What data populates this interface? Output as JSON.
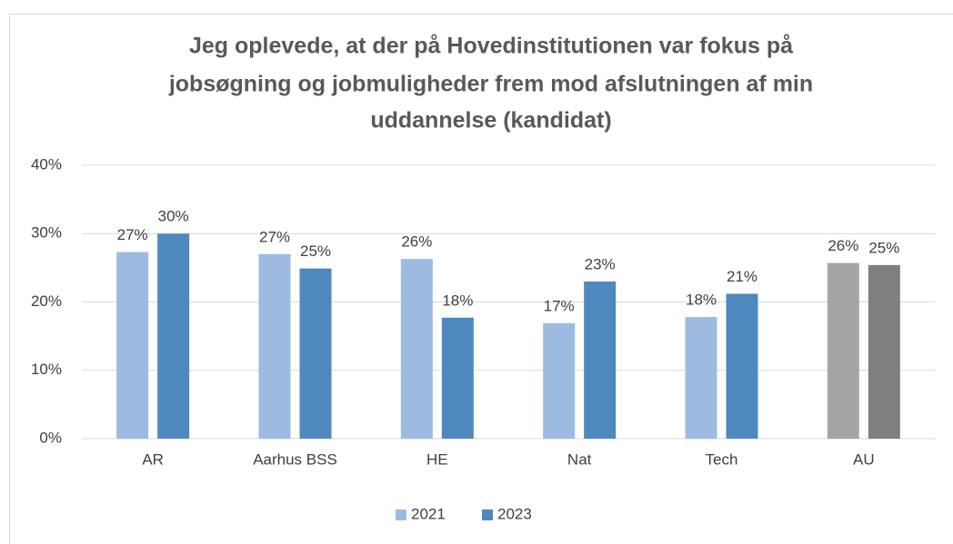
{
  "chart_data": {
    "type": "bar",
    "title": [
      "Jeg oplevede, at der på Hovedinstitutionen var fokus på",
      "jobsøgning og jobmuligheder frem mod afslutningen af min",
      "uddannelse (kandidat)"
    ],
    "categories": [
      "AR",
      "Aarhus BSS",
      "HE",
      "Nat",
      "Tech",
      "AU"
    ],
    "series": [
      {
        "name": "2021",
        "color": "#9dbbe0",
        "colors": [
          "#9dbbe0",
          "#9dbbe0",
          "#9dbbe0",
          "#9dbbe0",
          "#9dbbe0",
          "#a5a5a5"
        ],
        "values": [
          27.3,
          27,
          26.3,
          16.9,
          17.8,
          25.7
        ],
        "value_labels": [
          "27%",
          "27%",
          "26%",
          "17%",
          "18%",
          "26%"
        ]
      },
      {
        "name": "2023",
        "color": "#4f88bf",
        "colors": [
          "#4f88bf",
          "#4f88bf",
          "#4f88bf",
          "#4f88bf",
          "#4f88bf",
          "#7f7f7f"
        ],
        "values": [
          30,
          24.9,
          17.7,
          23,
          21.2,
          25.4
        ],
        "value_labels": [
          "30%",
          "25%",
          "18%",
          "23%",
          "21%",
          "25%"
        ]
      }
    ],
    "ylim": [
      0,
      40
    ],
    "yticks": [
      {
        "value": 0,
        "label": "0%"
      },
      {
        "value": 10,
        "label": "10%"
      },
      {
        "value": 20,
        "label": "20%"
      },
      {
        "value": 30,
        "label": "30%"
      },
      {
        "value": 40,
        "label": "40%"
      }
    ],
    "grid": true,
    "legend": "bottom"
  }
}
